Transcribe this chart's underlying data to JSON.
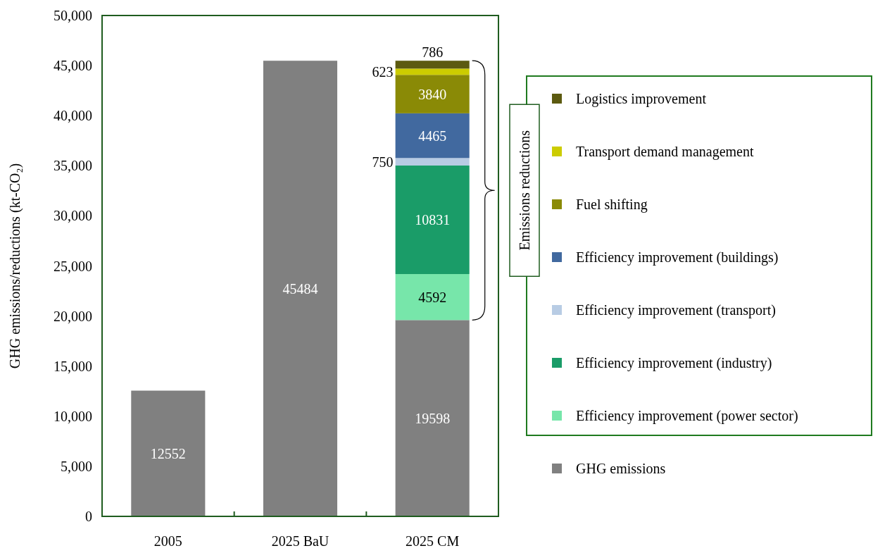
{
  "chart_data": {
    "type": "bar",
    "stacked": true,
    "ylabel": "GHG emissions/reductions (kt-CO₂)",
    "categories": [
      "2005",
      "2025 BaU",
      "2025 CM"
    ],
    "ylim": [
      0,
      50000
    ],
    "yticks": [
      0,
      {
        "value": 5000,
        "label": "5,000"
      },
      {
        "value": 10000,
        "label": "10,000"
      },
      {
        "value": 15000,
        "label": "15,000"
      },
      {
        "value": 20000,
        "label": "20,000"
      },
      {
        "value": 25000,
        "label": "25,000"
      },
      {
        "value": 30000,
        "label": "30,000"
      },
      {
        "value": 35000,
        "label": "35,000"
      },
      {
        "value": 40000,
        "label": "40,000"
      },
      {
        "value": 45000,
        "label": "45,000"
      },
      {
        "value": 50000,
        "label": "50,000"
      }
    ],
    "series": [
      {
        "name": "GHG emissions",
        "color": "#808080",
        "values": [
          12552,
          45484,
          19598
        ]
      },
      {
        "name": "Efficiency improvement (power sector)",
        "color": "#77e6aa",
        "values": [
          null,
          null,
          4592
        ]
      },
      {
        "name": "Efficiency improvement (industry)",
        "color": "#1a9c68",
        "values": [
          null,
          null,
          10831
        ]
      },
      {
        "name": "Efficiency improvement (transport)",
        "color": "#b8cce4",
        "values": [
          null,
          null,
          750
        ]
      },
      {
        "name": "Efficiency improvement (buildings)",
        "color": "#41699f",
        "values": [
          null,
          null,
          4465
        ]
      },
      {
        "name": "Fuel shifting",
        "color": "#8a8a06",
        "values": [
          null,
          null,
          3840
        ]
      },
      {
        "name": "Transport demand management",
        "color": "#cccc00",
        "values": [
          null,
          null,
          623
        ]
      },
      {
        "name": "Logistics improvement",
        "color": "#5c5a10",
        "values": [
          null,
          null,
          786
        ]
      }
    ],
    "data_labels": true,
    "legend": "right",
    "grid": false,
    "annotations": [
      "Emissions reductions"
    ]
  }
}
